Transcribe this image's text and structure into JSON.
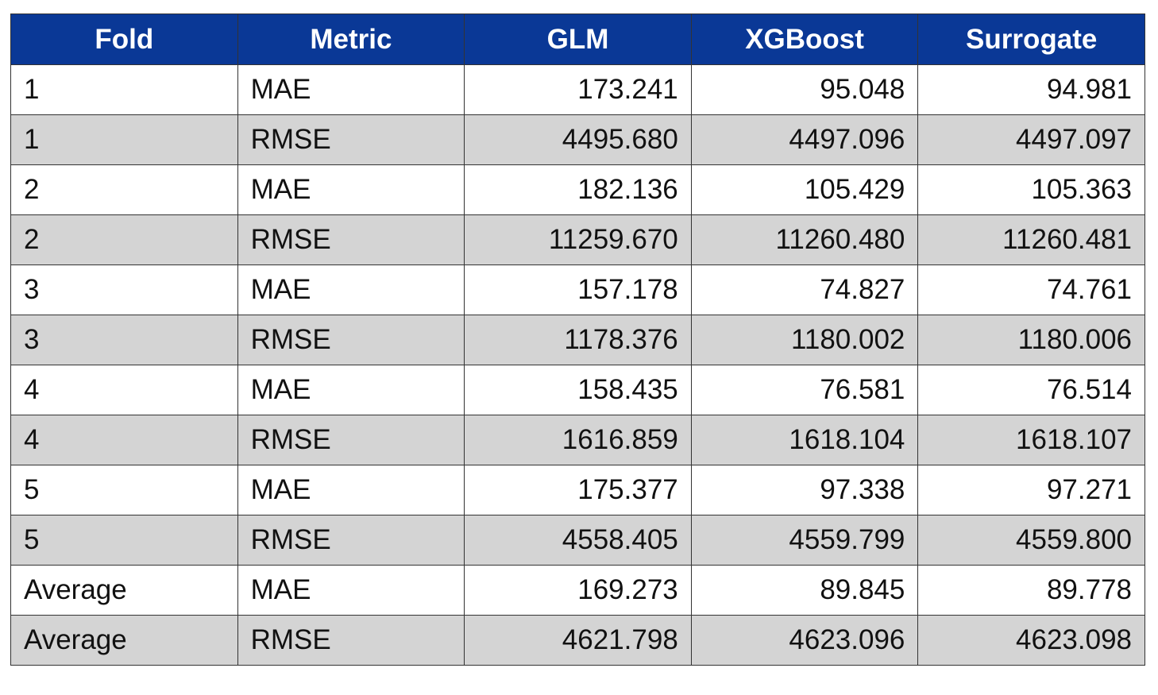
{
  "table": {
    "header": [
      "Fold",
      "Metric",
      "GLM",
      "XGBoost",
      "Surrogate"
    ],
    "rows": [
      [
        "1",
        "MAE",
        "173.241",
        "95.048",
        "94.981"
      ],
      [
        "1",
        "RMSE",
        "4495.680",
        "4497.096",
        "4497.097"
      ],
      [
        "2",
        "MAE",
        "182.136",
        "105.429",
        "105.363"
      ],
      [
        "2",
        "RMSE",
        "11259.670",
        "11260.480",
        "11260.481"
      ],
      [
        "3",
        "MAE",
        "157.178",
        "74.827",
        "74.761"
      ],
      [
        "3",
        "RMSE",
        "1178.376",
        "1180.002",
        "1180.006"
      ],
      [
        "4",
        "MAE",
        "158.435",
        "76.581",
        "76.514"
      ],
      [
        "4",
        "RMSE",
        "1616.859",
        "1618.104",
        "1618.107"
      ],
      [
        "5",
        "MAE",
        "175.377",
        "97.338",
        "97.271"
      ],
      [
        "5",
        "RMSE",
        "4558.405",
        "4559.799",
        "4559.800"
      ],
      [
        "Average",
        "MAE",
        "169.273",
        "89.845",
        "89.778"
      ],
      [
        "Average",
        "RMSE",
        "4621.798",
        "4623.096",
        "4623.098"
      ]
    ]
  }
}
